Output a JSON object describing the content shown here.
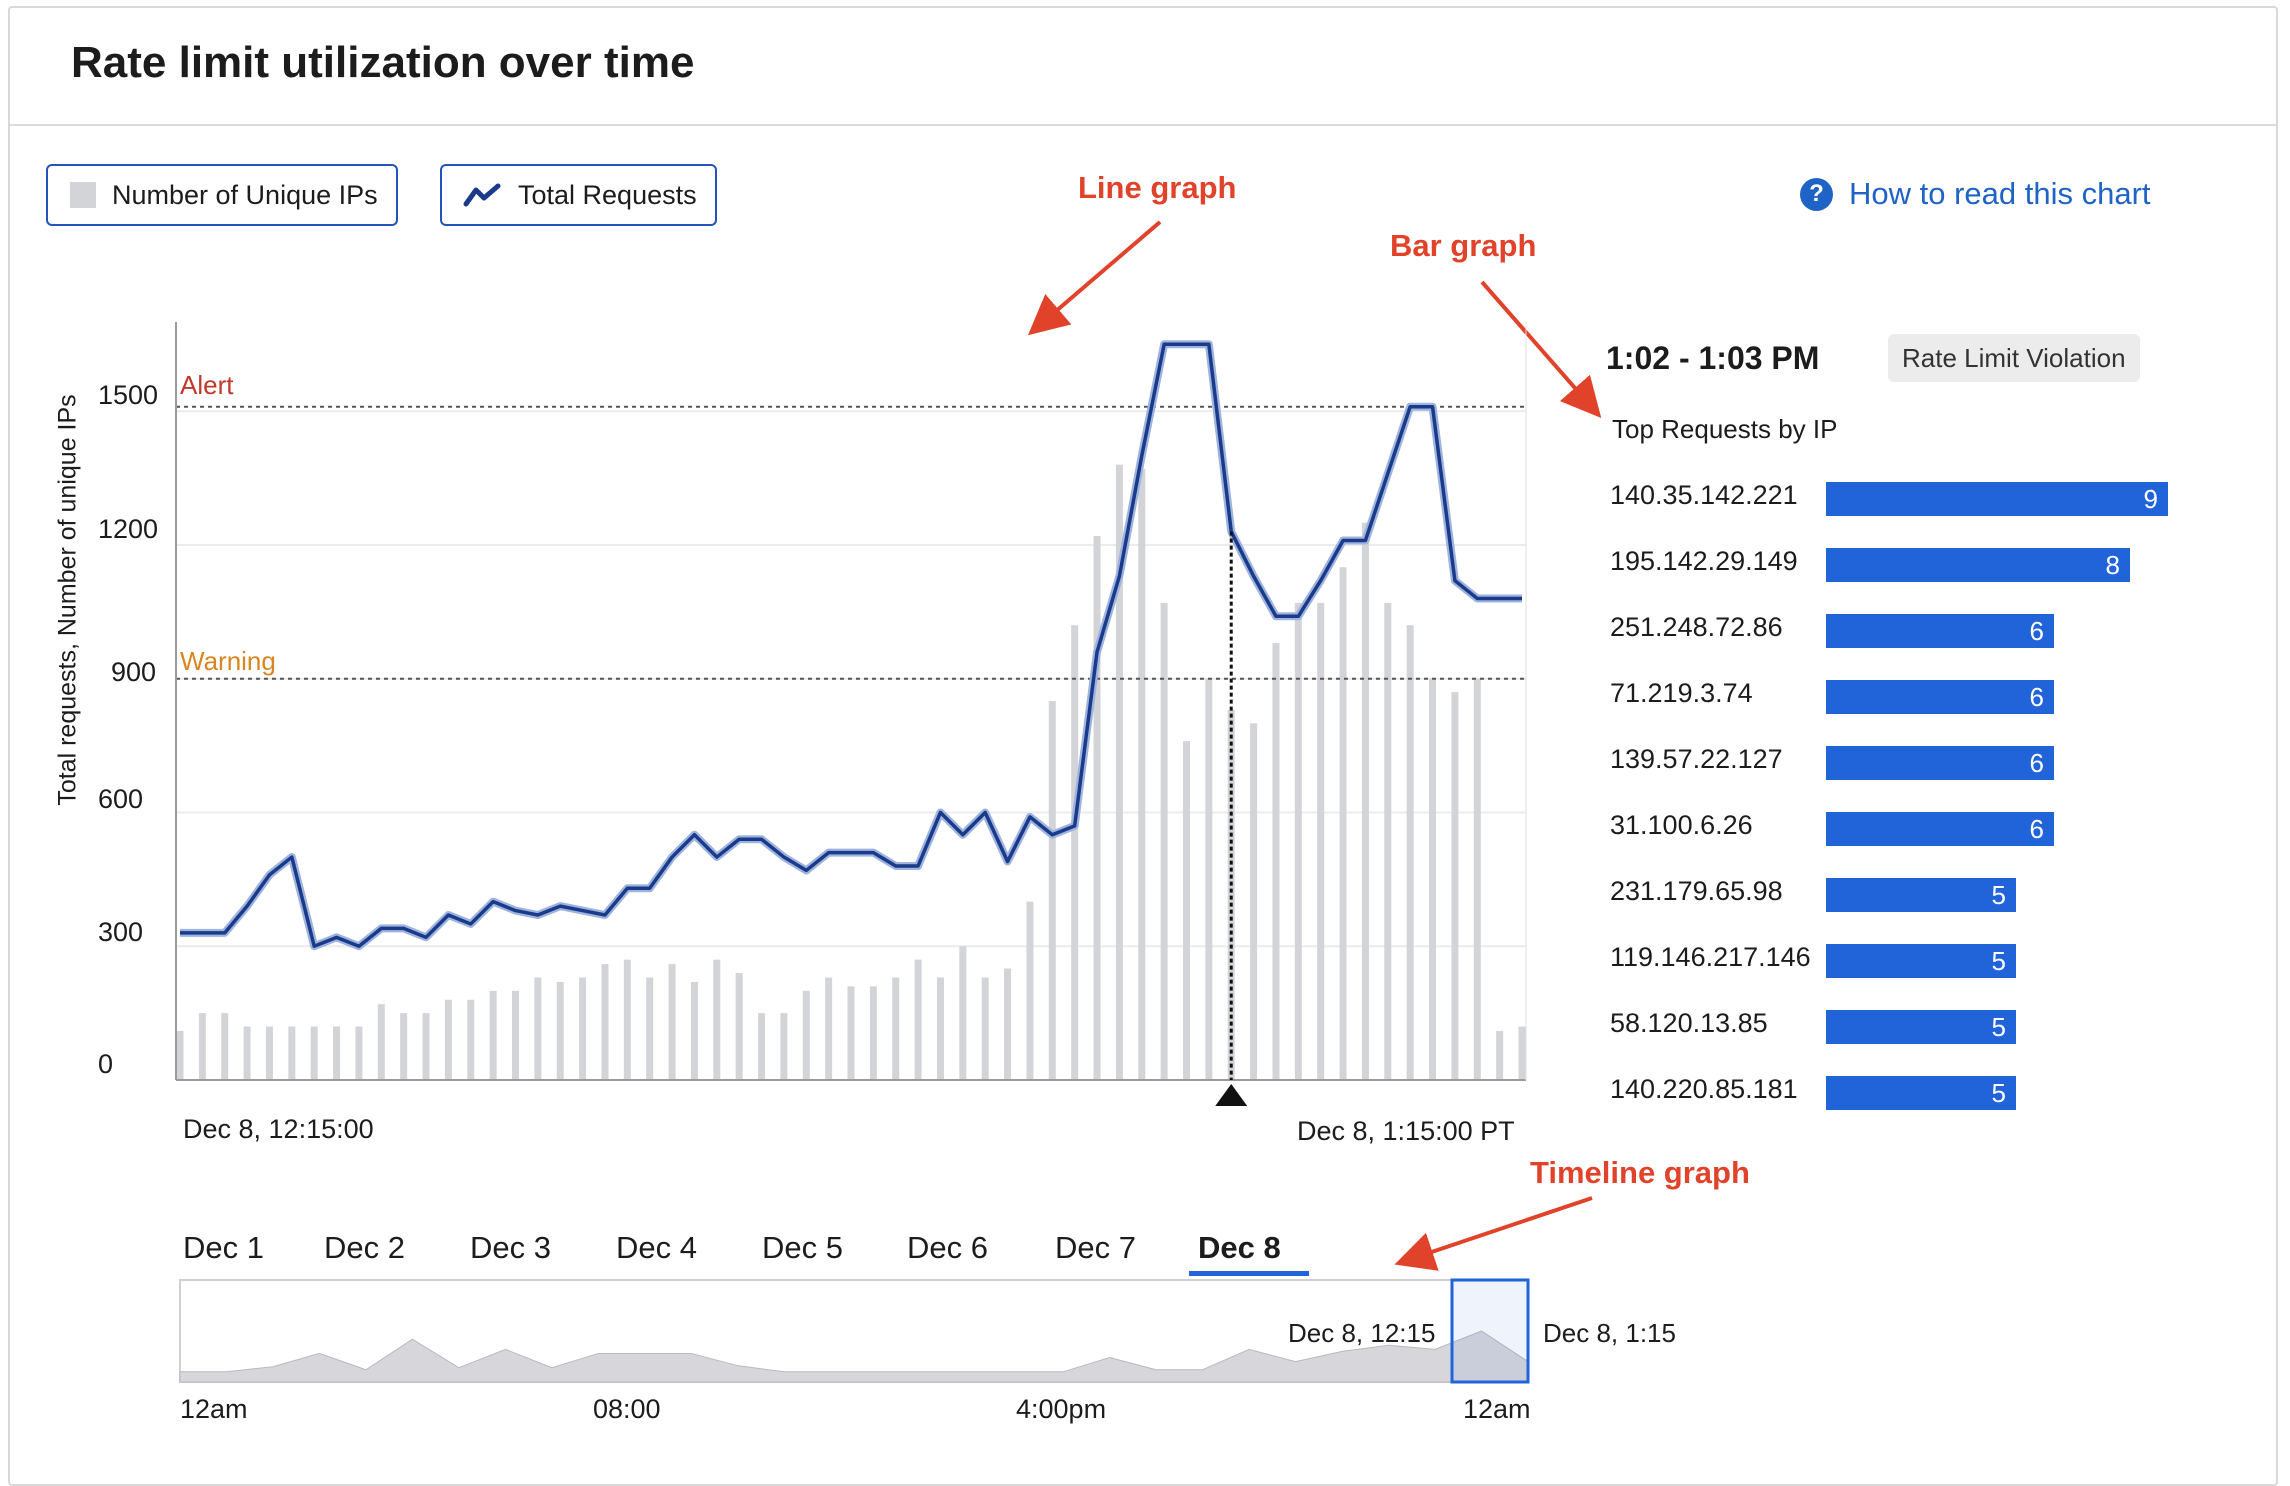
{
  "title": "Rate limit utilization over time",
  "legend": {
    "unique_ips_label": "Number of Unique IPs",
    "total_requests_label": "Total Requests"
  },
  "help_link": {
    "label": "How to read this chart",
    "icon": "question-circle-icon"
  },
  "annotations": {
    "line_graph": "Line graph",
    "bar_graph": "Bar graph",
    "timeline_graph": "Timeline graph"
  },
  "colors": {
    "line": "#1a3a8a",
    "bars": "#d3d4d8",
    "alert": "#c0392b",
    "warning": "#d98520",
    "accent": "#2164d9",
    "annotation": "#e0432a"
  },
  "chart_data": {
    "type": "line",
    "title": "",
    "ylabel": "Total requests, Number of unique IPs",
    "ylim": [
      0,
      1700
    ],
    "y_ticks": [
      "1500",
      "1200",
      "900",
      "600",
      "300",
      "0"
    ],
    "x_start_label": "Dec 8, 12:15:00",
    "x_end_label": "Dec 8, 1:15:00 PT",
    "x": [
      "12:15",
      "12:16",
      "12:17",
      "12:18",
      "12:19",
      "12:20",
      "12:21",
      "12:22",
      "12:23",
      "12:24",
      "12:25",
      "12:26",
      "12:27",
      "12:28",
      "12:29",
      "12:30",
      "12:31",
      "12:32",
      "12:33",
      "12:34",
      "12:35",
      "12:36",
      "12:37",
      "12:38",
      "12:39",
      "12:40",
      "12:41",
      "12:42",
      "12:43",
      "12:44",
      "12:45",
      "12:46",
      "12:47",
      "12:48",
      "12:49",
      "12:50",
      "12:51",
      "12:52",
      "12:53",
      "12:54",
      "12:55",
      "12:56",
      "12:57",
      "12:58",
      "12:59",
      "1:00",
      "1:01",
      "1:02",
      "1:03",
      "1:04",
      "1:05",
      "1:06",
      "1:07",
      "1:08",
      "1:09",
      "1:10",
      "1:11",
      "1:12",
      "1:13",
      "1:14",
      "1:15"
    ],
    "thresholds": [
      {
        "label": "Alert",
        "value": 1510
      },
      {
        "label": "Warning",
        "value": 900
      }
    ],
    "series": [
      {
        "name": "Total Requests",
        "kind": "line",
        "values": [
          330,
          330,
          330,
          390,
          460,
          500,
          300,
          320,
          300,
          340,
          340,
          320,
          370,
          350,
          400,
          380,
          370,
          390,
          380,
          370,
          430,
          430,
          500,
          550,
          500,
          540,
          540,
          500,
          470,
          510,
          510,
          510,
          480,
          480,
          600,
          550,
          600,
          490,
          590,
          550,
          570,
          960,
          1130,
          1400,
          1650,
          1650,
          1650,
          1230,
          1130,
          1040,
          1040,
          1120,
          1210,
          1210,
          1360,
          1510,
          1510,
          1120,
          1080,
          1080,
          1080
        ]
      },
      {
        "name": "Number of Unique IPs",
        "kind": "bar",
        "values": [
          110,
          150,
          150,
          120,
          120,
          120,
          120,
          120,
          120,
          170,
          150,
          150,
          180,
          180,
          200,
          200,
          230,
          220,
          230,
          260,
          270,
          230,
          260,
          220,
          270,
          240,
          150,
          150,
          200,
          230,
          210,
          210,
          230,
          270,
          230,
          300,
          230,
          250,
          400,
          850,
          1020,
          1220,
          1380,
          1370,
          1070,
          760,
          900,
          830,
          800,
          980,
          1070,
          1070,
          1150,
          1250,
          1070,
          1020,
          900,
          870,
          900,
          110,
          120
        ]
      }
    ]
  },
  "right_panel": {
    "time_range": "1:02 - 1:03 PM",
    "badge": "Rate Limit Violation",
    "subtitle": "Top Requests by IP",
    "rows": [
      {
        "ip": "140.35.142.221",
        "count": "9"
      },
      {
        "ip": "195.142.29.149",
        "count": "8"
      },
      {
        "ip": "251.248.72.86",
        "count": "6"
      },
      {
        "ip": "71.219.3.74",
        "count": "6"
      },
      {
        "ip": "139.57.22.127",
        "count": "6"
      },
      {
        "ip": "31.100.6.26",
        "count": "6"
      },
      {
        "ip": "231.179.65.98",
        "count": "5"
      },
      {
        "ip": "119.146.217.146",
        "count": "5"
      },
      {
        "ip": "58.120.13.85",
        "count": "5"
      },
      {
        "ip": "140.220.85.181",
        "count": "5"
      }
    ]
  },
  "timeline": {
    "tabs": [
      "Dec 1",
      "Dec 2",
      "Dec 3",
      "Dec 4",
      "Dec 5",
      "Dec 6",
      "Dec 7",
      "Dec 8"
    ],
    "active_tab": "Dec 8",
    "selection_start_label": "Dec 8, 12:15",
    "selection_end_label": "Dec 8, 1:15",
    "x_labels": [
      "12am",
      "08:00",
      "4:00pm",
      "12am"
    ],
    "area_values": [
      10,
      10,
      15,
      28,
      12,
      42,
      14,
      32,
      14,
      28,
      28,
      28,
      16,
      10,
      10,
      10,
      10,
      10,
      10,
      10,
      24,
      12,
      12,
      32,
      20,
      30,
      36,
      32,
      50,
      20
    ]
  }
}
